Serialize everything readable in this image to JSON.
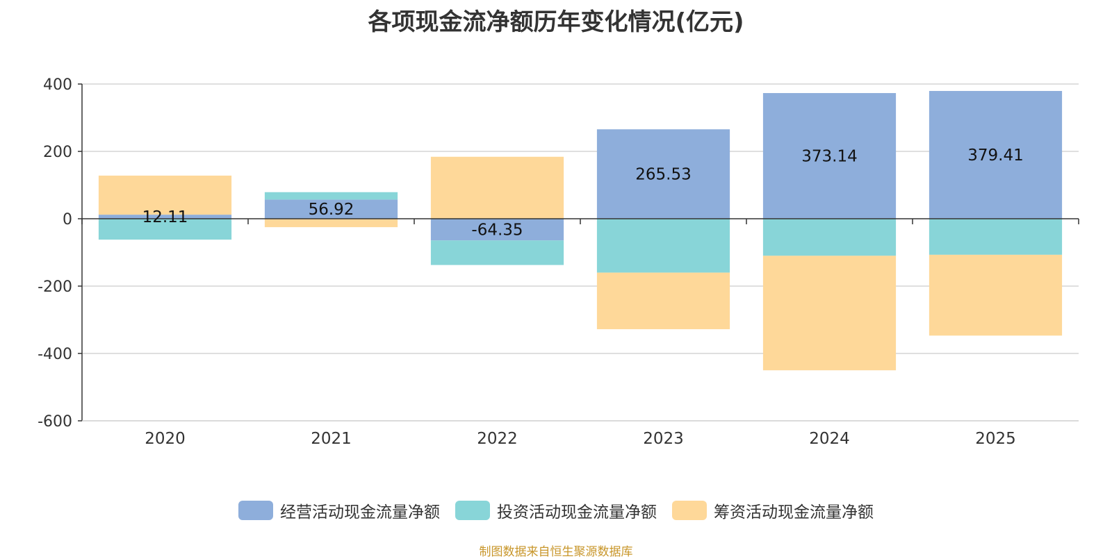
{
  "chart_data": {
    "type": "bar",
    "stacked": true,
    "title": "各项现金流净额历年变化情况(亿元)",
    "categories": [
      "2020",
      "2021",
      "2022",
      "2023",
      "2024",
      "2025"
    ],
    "series": [
      {
        "name": "经营活动现金流量净额",
        "color": "#8eaedb",
        "values": [
          12.11,
          56.92,
          -64.35,
          265.53,
          373.14,
          379.41
        ]
      },
      {
        "name": "投资活动现金流量净额",
        "color": "#88d5d8",
        "values": [
          -62,
          22,
          -73,
          -160,
          -110,
          -107
        ]
      },
      {
        "name": "筹资活动现金流量净额",
        "color": "#fed899",
        "values": [
          116,
          -25,
          184,
          -168,
          -340,
          -240
        ]
      }
    ],
    "data_labels": [
      "12.11",
      "56.92",
      "-64.35",
      "265.53",
      "373.14",
      "379.41"
    ],
    "ylim": [
      -600,
      400
    ],
    "yticks": [
      400,
      200,
      0,
      -200,
      -400,
      -600
    ],
    "ytick_labels": [
      "400",
      "200",
      "0",
      "-200",
      "-400",
      "-600"
    ],
    "xlabel": "",
    "ylabel": "",
    "grid": true,
    "legend_position": "bottom"
  },
  "source_note": "制图数据来自恒生聚源数据库"
}
